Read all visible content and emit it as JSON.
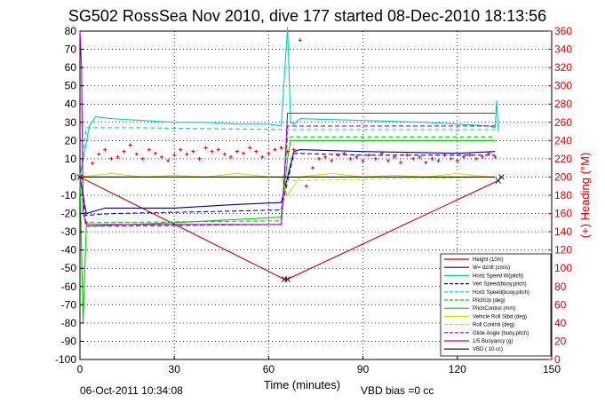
{
  "figure": {
    "title": "SG502 RossSea Nov 2010, dive 177 started 08-Dec-2010 18:13:56",
    "timestamp": "06-Oct-2011 10:34:08",
    "vbd_bias": "VBD bias =0 cc"
  },
  "colors": {
    "right_axis": "#dd0000",
    "grid": "#000000"
  },
  "chart_data": {
    "type": "line",
    "title": "SG502 RossSea Nov 2010, dive 177 started 08-Dec-2010 18:13:56",
    "xlabel": "Time (minutes)",
    "ylabel": "",
    "y2label": "(+) Heading (°M)",
    "xlim": [
      0,
      150
    ],
    "ylim": [
      -100,
      80
    ],
    "y2lim": [
      0,
      360
    ],
    "grid": true,
    "legend_position": "bottom-right",
    "x_ticks": [
      "0",
      "30",
      "60",
      "90",
      "120",
      "150"
    ],
    "y_ticks": [
      "80",
      "70",
      "60",
      "50",
      "40",
      "30",
      "20",
      "10",
      "0",
      "-10",
      "-20",
      "-30",
      "-40",
      "-50",
      "-60",
      "-70",
      "-80",
      "-90",
      "-100"
    ],
    "y2_ticks": [
      "360",
      "340",
      "320",
      "300",
      "280",
      "260",
      "240",
      "220",
      "200",
      "180",
      "160",
      "140",
      "120",
      "100",
      "80",
      "60",
      "40",
      "20",
      "0"
    ],
    "series": [
      {
        "name": "Height (10m)",
        "color": "#cc0000",
        "style": "solid",
        "x": [
          0,
          65,
          66,
          133,
          134
        ],
        "y": [
          0,
          -56,
          -56,
          -2,
          0
        ]
      },
      {
        "name": "W= dz/dt (cm/s)",
        "color": "#000088",
        "style": "solid",
        "x": [
          0,
          2,
          8,
          30,
          50,
          64,
          68,
          70,
          90,
          120,
          132
        ],
        "y": [
          0,
          -20,
          -17,
          -17,
          -15,
          -14,
          14,
          15,
          14,
          13,
          14
        ]
      },
      {
        "name": "Horiz Speed W(pitch)",
        "color": "#00cccc",
        "style": "solid",
        "x": [
          0,
          3,
          5,
          10,
          20,
          30,
          40,
          50,
          60,
          64,
          66,
          67,
          68,
          70,
          90,
          110,
          130,
          132,
          132.5,
          133
        ],
        "y": [
          0,
          28,
          33,
          32,
          31,
          30,
          30,
          29,
          29,
          28,
          82,
          30,
          29,
          32,
          31,
          30,
          28,
          27,
          42,
          25
        ]
      },
      {
        "name": "Vert Speed(buoy,pitch)",
        "color": "#0000cc",
        "style": "dashed",
        "x": [
          0,
          2,
          10,
          40,
          64,
          68,
          90,
          132
        ],
        "y": [
          0,
          -21,
          -20,
          -19,
          -18,
          13,
          12,
          12
        ]
      },
      {
        "name": "Horiz Speed(buoy,pitch)",
        "color": "#00cccc",
        "style": "dashed",
        "x": [
          0,
          2,
          20,
          64,
          68,
          132
        ],
        "y": [
          0,
          27,
          27,
          26,
          26,
          26
        ]
      },
      {
        "name": "PitchUp (deg)",
        "color": "#00cc00",
        "style": "dashed",
        "x": [
          0,
          2,
          64,
          66,
          132
        ],
        "y": [
          0,
          -25,
          -24,
          22,
          22
        ]
      },
      {
        "name": "PitchControl (mm)",
        "color": "#00cc00",
        "style": "solid",
        "x": [
          0,
          1,
          2,
          30,
          64,
          66,
          67,
          132
        ],
        "y": [
          0,
          -80,
          -27,
          -25,
          -22,
          10,
          20,
          20
        ]
      },
      {
        "name": "Vehicle Roll Stbd (deg)",
        "color": "#dddd00",
        "style": "solid",
        "x": [
          0,
          10,
          20,
          30,
          40,
          50,
          60,
          64,
          66,
          70,
          80,
          90,
          100,
          110,
          120,
          130,
          132
        ],
        "y": [
          0,
          2,
          0,
          1,
          0,
          2,
          0,
          0,
          -10,
          0,
          2,
          0,
          1,
          0,
          2,
          0,
          0
        ]
      },
      {
        "name": "Roll Control (deg)",
        "color": "#dddd00",
        "style": "dashed",
        "x": [
          0,
          64,
          66,
          132
        ],
        "y": [
          0,
          0,
          -2,
          0
        ]
      },
      {
        "name": "Glide Angle (buoy,pitch)",
        "color": "#aa00cc",
        "style": "dashed",
        "x": [
          0,
          2,
          64,
          66,
          132
        ],
        "y": [
          0,
          -27,
          -26,
          28,
          28
        ]
      },
      {
        "name": "1/5 Buoyancy (g)",
        "color": "#aa00cc",
        "style": "solid",
        "x": [
          0,
          0.5,
          1,
          2,
          64,
          65,
          66,
          132
        ],
        "y": [
          80,
          60,
          -20,
          -26,
          -26,
          0,
          35,
          35
        ]
      },
      {
        "name": "VBD ( 10 cc)",
        "color": "#000000",
        "style": "solid",
        "x": [
          0,
          132
        ],
        "y": [
          0,
          0
        ]
      }
    ],
    "heading_series": {
      "name": "(+) Heading (°M)",
      "color": "#dd0000",
      "x": [
        0,
        2,
        4,
        6,
        8,
        10,
        12,
        14,
        16,
        18,
        20,
        22,
        24,
        26,
        28,
        30,
        32,
        34,
        36,
        38,
        40,
        42,
        44,
        46,
        48,
        50,
        52,
        54,
        56,
        58,
        60,
        62,
        64,
        66,
        68,
        70,
        72,
        74,
        76,
        78,
        80,
        82,
        84,
        86,
        88,
        90,
        92,
        94,
        96,
        98,
        100,
        102,
        104,
        106,
        108,
        110,
        112,
        114,
        116,
        118,
        120,
        122,
        124,
        126,
        128,
        130,
        132
      ],
      "y": [
        200,
        150,
        215,
        225,
        230,
        220,
        222,
        228,
        235,
        225,
        220,
        230,
        226,
        222,
        218,
        224,
        230,
        225,
        228,
        220,
        232,
        228,
        230,
        225,
        222,
        228,
        226,
        232,
        228,
        222,
        226,
        230,
        232,
        228,
        230,
        350,
        190,
        210,
        220,
        222,
        218,
        224,
        226,
        220,
        222,
        218,
        224,
        220,
        226,
        218,
        222,
        216,
        224,
        220,
        222,
        216,
        220,
        218,
        224,
        220,
        218,
        222,
        224,
        220,
        222,
        226,
        222
      ]
    }
  }
}
